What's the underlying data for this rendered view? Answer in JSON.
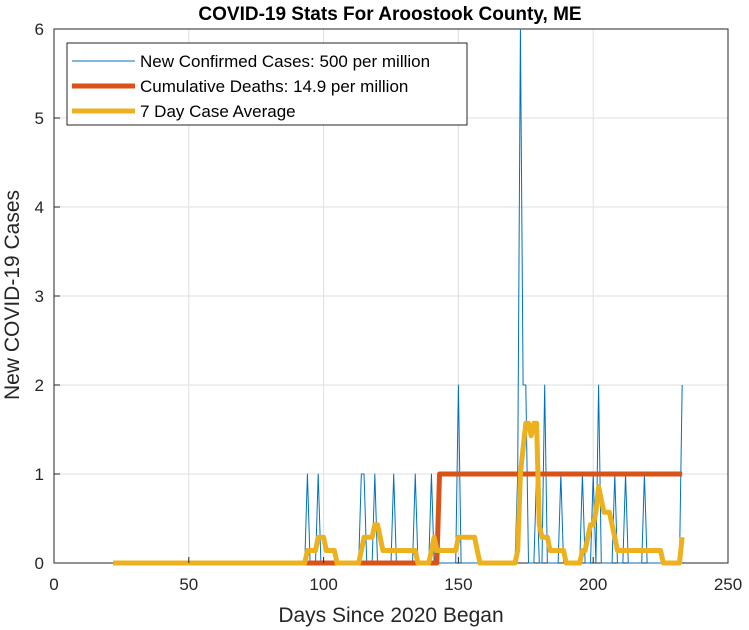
{
  "chart_data": {
    "type": "line",
    "title": "COVID-19 Stats For Aroostook County, ME",
    "xlabel": "Days Since 2020 Began",
    "ylabel": "New COVID-19 Cases",
    "xlim": [
      0,
      250
    ],
    "ylim": [
      0,
      6
    ],
    "xticks": [
      0,
      50,
      100,
      150,
      200,
      250
    ],
    "yticks": [
      0,
      1,
      2,
      3,
      4,
      5,
      6
    ],
    "grid": true,
    "legend_position": "top-left",
    "series": [
      {
        "name": "New Confirmed Cases: 500 per million",
        "color": "#0072BD",
        "points": [
          [
            22,
            0
          ],
          [
            93,
            0
          ],
          [
            94,
            1
          ],
          [
            95,
            0
          ],
          [
            97,
            0
          ],
          [
            98,
            1
          ],
          [
            99,
            0
          ],
          [
            113,
            0
          ],
          [
            114,
            1
          ],
          [
            115,
            1
          ],
          [
            116,
            0
          ],
          [
            118,
            0
          ],
          [
            119,
            1
          ],
          [
            120,
            0
          ],
          [
            125,
            0
          ],
          [
            126,
            1
          ],
          [
            127,
            0
          ],
          [
            133,
            0
          ],
          [
            134,
            1
          ],
          [
            135,
            0
          ],
          [
            139,
            0
          ],
          [
            140,
            1
          ],
          [
            141,
            0
          ],
          [
            149,
            0
          ],
          [
            150,
            2
          ],
          [
            151,
            0
          ],
          [
            171,
            0
          ],
          [
            172,
            1
          ],
          [
            173,
            6
          ],
          [
            174,
            2
          ],
          [
            175,
            2
          ],
          [
            176,
            0
          ],
          [
            178,
            0
          ],
          [
            179,
            1
          ],
          [
            180,
            0
          ],
          [
            181,
            0
          ],
          [
            182,
            2
          ],
          [
            183,
            0
          ],
          [
            187,
            0
          ],
          [
            188,
            1
          ],
          [
            189,
            0
          ],
          [
            195,
            0
          ],
          [
            196,
            1
          ],
          [
            197,
            0
          ],
          [
            199,
            0
          ],
          [
            200,
            1
          ],
          [
            201,
            0
          ],
          [
            202,
            2
          ],
          [
            203,
            0
          ],
          [
            207,
            0
          ],
          [
            208,
            1
          ],
          [
            209,
            0
          ],
          [
            211,
            0
          ],
          [
            212,
            1
          ],
          [
            213,
            0
          ],
          [
            218,
            0
          ],
          [
            219,
            1
          ],
          [
            220,
            0
          ],
          [
            232,
            0
          ],
          [
            233,
            2
          ]
        ]
      },
      {
        "name": "Cumulative Deaths: 14.9 per million",
        "color": "#D95319",
        "points": [
          [
            22,
            0
          ],
          [
            142,
            0
          ],
          [
            143,
            1
          ],
          [
            233,
            1
          ]
        ]
      },
      {
        "name": "7 Day Case Average",
        "color": "#EDB120",
        "points": [
          [
            22,
            0
          ],
          [
            93,
            0
          ],
          [
            94,
            0.14
          ],
          [
            97,
            0.14
          ],
          [
            98,
            0.29
          ],
          [
            100,
            0.29
          ],
          [
            101,
            0.14
          ],
          [
            104,
            0.14
          ],
          [
            105,
            0
          ],
          [
            113,
            0
          ],
          [
            114,
            0.14
          ],
          [
            115,
            0.29
          ],
          [
            118,
            0.29
          ],
          [
            119,
            0.43
          ],
          [
            120,
            0.43
          ],
          [
            121,
            0.29
          ],
          [
            122,
            0.14
          ],
          [
            125,
            0.14
          ],
          [
            126,
            0.14
          ],
          [
            127,
            0.14
          ],
          [
            133,
            0.14
          ],
          [
            134,
            0.14
          ],
          [
            135,
            0
          ],
          [
            139,
            0
          ],
          [
            140,
            0.14
          ],
          [
            141,
            0.29
          ],
          [
            142,
            0.14
          ],
          [
            147,
            0.14
          ],
          [
            148,
            0.14
          ],
          [
            149,
            0.14
          ],
          [
            150,
            0.29
          ],
          [
            156,
            0.29
          ],
          [
            157,
            0.14
          ],
          [
            158,
            0
          ],
          [
            171,
            0
          ],
          [
            172,
            0.14
          ],
          [
            173,
            1.0
          ],
          [
            174,
            1.29
          ],
          [
            175,
            1.57
          ],
          [
            176,
            1.57
          ],
          [
            177,
            1.43
          ],
          [
            178,
            1.57
          ],
          [
            179,
            1.57
          ],
          [
            180,
            0.43
          ],
          [
            181,
            0.29
          ],
          [
            182,
            0.29
          ],
          [
            183,
            0.29
          ],
          [
            184,
            0.14
          ],
          [
            186,
            0.14
          ],
          [
            187,
            0.14
          ],
          [
            188,
            0.14
          ],
          [
            189,
            0.14
          ],
          [
            190,
            0
          ],
          [
            195,
            0
          ],
          [
            196,
            0.14
          ],
          [
            197,
            0.14
          ],
          [
            198,
            0.29
          ],
          [
            199,
            0.43
          ],
          [
            200,
            0.43
          ],
          [
            201,
            0.57
          ],
          [
            202,
            0.86
          ],
          [
            203,
            0.71
          ],
          [
            204,
            0.57
          ],
          [
            206,
            0.57
          ],
          [
            207,
            0.43
          ],
          [
            208,
            0.29
          ],
          [
            209,
            0.14
          ],
          [
            211,
            0.14
          ],
          [
            212,
            0.14
          ],
          [
            213,
            0.14
          ],
          [
            218,
            0.14
          ],
          [
            219,
            0.14
          ],
          [
            220,
            0.14
          ],
          [
            224,
            0.14
          ],
          [
            225,
            0.14
          ],
          [
            226,
            0
          ],
          [
            232,
            0
          ],
          [
            233,
            0.29
          ]
        ]
      }
    ]
  }
}
